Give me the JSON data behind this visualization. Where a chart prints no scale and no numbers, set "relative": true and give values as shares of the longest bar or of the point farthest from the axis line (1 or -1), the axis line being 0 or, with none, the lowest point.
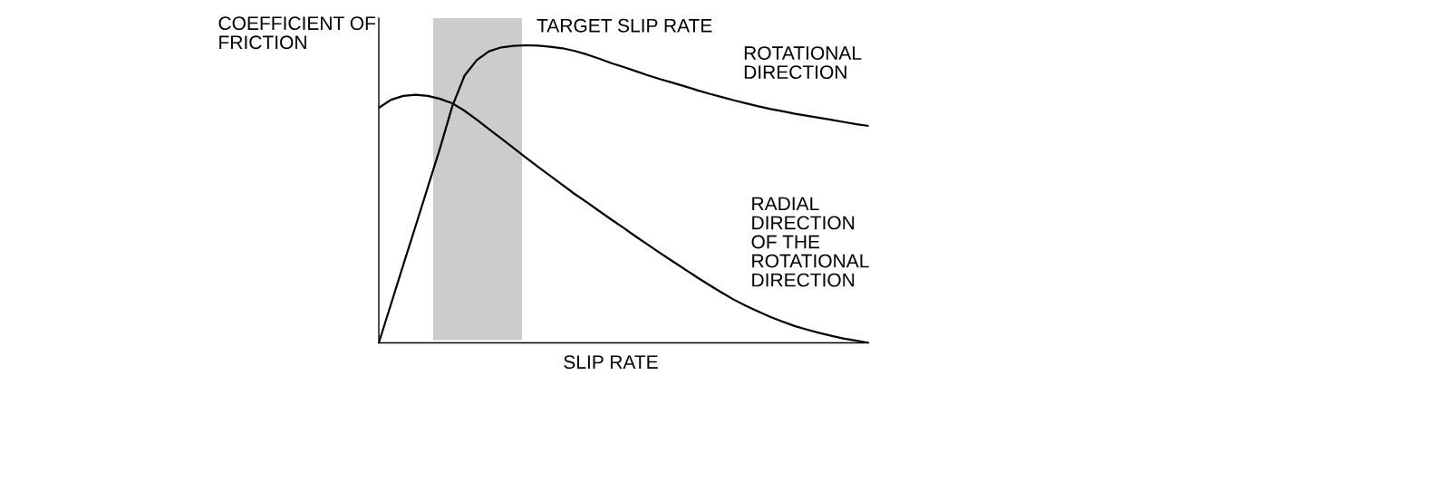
{
  "chart_data": {
    "type": "line",
    "relative": true,
    "xlabel": "SLIP RATE",
    "ylabel": "COEFFICIENT OF\nFRICTION",
    "categories": [
      null,
      null,
      null,
      null,
      null,
      null,
      null,
      null,
      null,
      null,
      null,
      null,
      null,
      null,
      null,
      null,
      null,
      null,
      null,
      null,
      null,
      null,
      null,
      null,
      null,
      null,
      null,
      null,
      null,
      null,
      null,
      null,
      null,
      null,
      null,
      null,
      null,
      null,
      null,
      null,
      null
    ],
    "series": [
      {
        "name": "ROTATIONAL\nDIRECTION",
        "color": "#000000",
        "values": [
          0,
          0.131,
          0.262,
          0.392,
          0.523,
          0.654,
          0.795,
          0.898,
          0.95,
          0.98,
          0.993,
          0.998,
          1.0,
          0.999,
          0.995,
          0.99,
          0.981,
          0.969,
          0.955,
          0.94,
          0.927,
          0.913,
          0.899,
          0.886,
          0.874,
          0.862,
          0.849,
          0.837,
          0.826,
          0.815,
          0.805,
          0.795,
          0.786,
          0.778,
          0.77,
          0.763,
          0.756,
          0.749,
          0.742,
          0.735,
          0.729
        ]
      },
      {
        "name": "RADIAL\nDIRECTION\nOF THE\nROTATIONAL\nDIRECTION",
        "color": "#000000",
        "values": [
          0.79,
          0.817,
          0.83,
          0.834,
          0.83,
          0.82,
          0.805,
          0.78,
          0.75,
          0.718,
          0.687,
          0.655,
          0.623,
          0.592,
          0.561,
          0.531,
          0.5,
          0.472,
          0.443,
          0.414,
          0.386,
          0.357,
          0.329,
          0.301,
          0.274,
          0.247,
          0.22,
          0.194,
          0.169,
          0.145,
          0.124,
          0.105,
          0.087,
          0.071,
          0.056,
          0.044,
          0.033,
          0.023,
          0.014,
          0.007,
          0
        ]
      }
    ],
    "annotations": [
      "TARGET SLIP RATE"
    ]
  }
}
